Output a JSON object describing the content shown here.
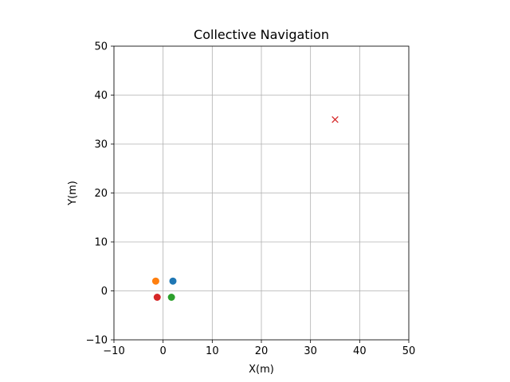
{
  "chart_data": {
    "type": "scatter",
    "title": "Collective Navigation",
    "xlabel": "X(m)",
    "ylabel": "Y(m)",
    "xlim": [
      -10,
      50
    ],
    "ylim": [
      -10,
      50
    ],
    "xticks": [
      -10,
      0,
      10,
      20,
      30,
      40,
      50
    ],
    "yticks": [
      -10,
      0,
      10,
      20,
      30,
      40,
      50
    ],
    "grid": true,
    "points": [
      {
        "x": 2,
        "y": 2,
        "color": "#1f77b4",
        "marker": "circle"
      },
      {
        "x": -1.5,
        "y": 2,
        "color": "#ff7f0e",
        "marker": "circle"
      },
      {
        "x": 1.7,
        "y": -1.3,
        "color": "#2ca02c",
        "marker": "circle"
      },
      {
        "x": -1.2,
        "y": -1.3,
        "color": "#d62728",
        "marker": "circle"
      }
    ],
    "target": {
      "x": 35,
      "y": 35,
      "color": "#d62728",
      "marker": "x"
    }
  }
}
